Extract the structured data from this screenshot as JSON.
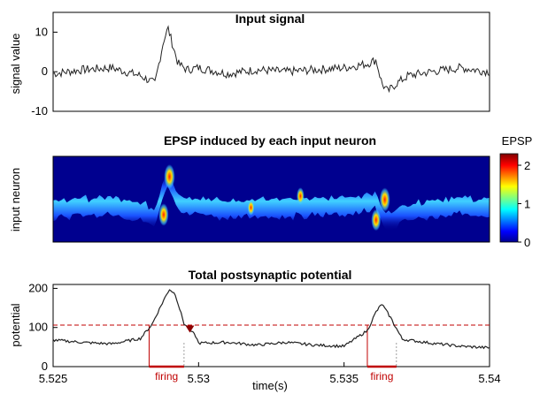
{
  "chart_data": [
    {
      "type": "line",
      "title": "Input signal",
      "ylabel": "signal value",
      "xlabel": "",
      "ylim": [
        -10,
        15
      ],
      "xlim": [
        5.525,
        5.54
      ],
      "yticks": [
        -10,
        0,
        10
      ],
      "xticks": [],
      "grid": false,
      "series": [
        {
          "values": [
            [
              5.525,
              -0.5
            ],
            [
              5.526,
              0.5
            ],
            [
              5.527,
              1
            ],
            [
              5.528,
              -1
            ],
            [
              5.5285,
              -3
            ],
            [
              5.5288,
              8
            ],
            [
              5.52895,
              11
            ],
            [
              5.5291,
              7
            ],
            [
              5.5293,
              2
            ],
            [
              5.5296,
              0.5
            ],
            [
              5.53,
              1
            ],
            [
              5.531,
              -0.5
            ],
            [
              5.532,
              0.5
            ],
            [
              5.533,
              0
            ],
            [
              5.534,
              0.5
            ],
            [
              5.535,
              1
            ],
            [
              5.5358,
              2
            ],
            [
              5.5361,
              3
            ],
            [
              5.5363,
              -3
            ],
            [
              5.5365,
              -5
            ],
            [
              5.5368,
              -3
            ],
            [
              5.5372,
              -1
            ],
            [
              5.538,
              0
            ],
            [
              5.539,
              1
            ],
            [
              5.54,
              0
            ]
          ],
          "color": "#222222"
        }
      ]
    },
    {
      "type": "heatmap",
      "title": "EPSP induced by each input neuron",
      "ylabel": "input neuron",
      "xlabel": "",
      "xlim": [
        5.525,
        5.54
      ],
      "colorbar": {
        "label": "EPSP",
        "ticks": [
          0,
          1,
          2
        ],
        "range": [
          0,
          2.3
        ]
      },
      "peaks": [
        {
          "x": 5.529,
          "value": 2.2
        },
        {
          "x": 5.5288,
          "value": 1.9
        },
        {
          "x": 5.5364,
          "value": 2.1
        },
        {
          "x": 5.5361,
          "value": 1.8
        },
        {
          "x": 5.5335,
          "value": 1.2
        },
        {
          "x": 5.5318,
          "value": 1.0
        }
      ]
    },
    {
      "type": "line",
      "title": "Total postsynaptic potential",
      "ylabel": "potential",
      "xlabel": "time(s)",
      "ylim": [
        0,
        210
      ],
      "xlim": [
        5.525,
        5.54
      ],
      "yticks": [
        0,
        100,
        200
      ],
      "xticks": [
        5.525,
        5.53,
        5.535,
        5.54
      ],
      "xtick_labels": [
        "5.525",
        "5.53",
        "5.535",
        "5.54"
      ],
      "grid": false,
      "threshold": 106,
      "series": [
        {
          "values": [
            [
              5.525,
              68
            ],
            [
              5.526,
              62
            ],
            [
              5.527,
              58
            ],
            [
              5.528,
              72
            ],
            [
              5.5284,
              108
            ],
            [
              5.5288,
              170
            ],
            [
              5.529,
              198
            ],
            [
              5.5292,
              185
            ],
            [
              5.5295,
              110
            ],
            [
              5.5299,
              78
            ],
            [
              5.53,
              60
            ],
            [
              5.531,
              62
            ],
            [
              5.532,
              55
            ],
            [
              5.533,
              62
            ],
            [
              5.534,
              55
            ],
            [
              5.535,
              52
            ],
            [
              5.5358,
              92
            ],
            [
              5.5361,
              140
            ],
            [
              5.5363,
              160
            ],
            [
              5.5366,
              125
            ],
            [
              5.537,
              70
            ],
            [
              5.538,
              60
            ],
            [
              5.539,
              52
            ],
            [
              5.54,
              48
            ]
          ],
          "color": "#222222"
        }
      ],
      "annotations": [
        {
          "text": "firing",
          "x_range": [
            5.5283,
            5.5295
          ]
        },
        {
          "text": "firing",
          "x_range": [
            5.5358,
            5.5368
          ]
        }
      ],
      "marker": {
        "x": 5.5297,
        "y": 96,
        "color": "#8b0000"
      }
    }
  ]
}
